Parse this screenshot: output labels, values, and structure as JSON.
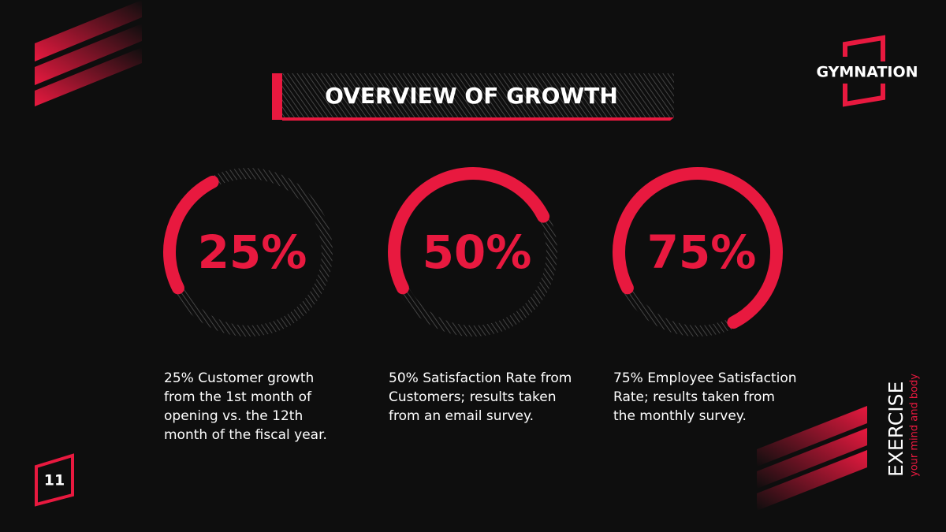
{
  "logo": "GYMNATION",
  "title": "OVERVIEW OF GROWTH",
  "page_number": "11",
  "tagline": {
    "main": "EXERCISE",
    "sub": "your mind and body"
  },
  "chart_data": {
    "type": "progress-ring",
    "values": [
      25,
      50,
      75
    ],
    "value_labels": [
      "25%",
      "50%",
      "75%"
    ],
    "ylim": [
      0,
      100
    ],
    "color": "#e8193f",
    "captions": [
      "25% Customer growth from the 1st month of opening vs. the 12th month of the fiscal year.",
      "50% Satisfaction Rate from Customers; results taken from an email survey.",
      "75% Employee Satisfaction Rate; results taken from the monthly survey."
    ]
  }
}
